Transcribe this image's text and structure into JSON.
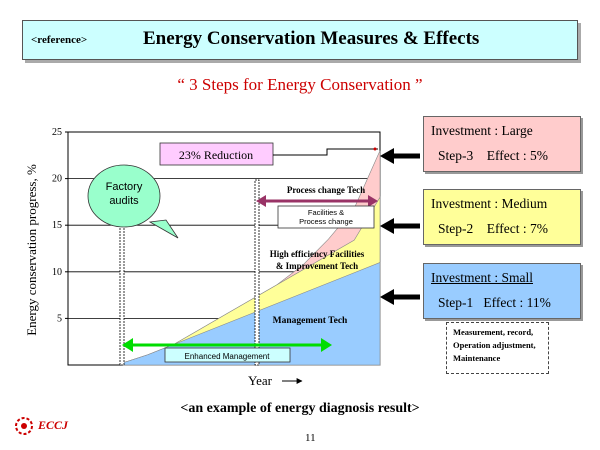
{
  "header": {
    "reference": "<reference>",
    "title": "Energy Conservation Measures & Effects"
  },
  "subtitle": "“ 3 Steps for Energy Conservation ”",
  "chart_data": {
    "type": "area",
    "ylabel": "Energy conservation progress, %",
    "xlabel": "Year",
    "ylim": [
      0,
      25
    ],
    "y_ticks": [
      5,
      10,
      15,
      20,
      25
    ],
    "grid": true,
    "x": [
      0,
      1,
      2,
      3,
      4,
      5,
      6,
      7,
      8,
      9,
      10
    ],
    "series": [
      {
        "name": "Management Tech",
        "values": [
          0.2,
          1.1,
          2.2,
          3.3,
          4.4,
          5.5,
          6.6,
          7.7,
          8.8,
          9.9,
          11.0
        ]
      },
      {
        "name": "High efficiency Facilities & Improvement Tech",
        "values": [
          0.2,
          1.1,
          2.2,
          3.8,
          5.4,
          7.0,
          8.6,
          10.2,
          11.8,
          13.4,
          18.0
        ]
      },
      {
        "name": "Process change Tech",
        "values": [
          0.2,
          1.1,
          2.2,
          3.8,
          5.4,
          7.0,
          8.6,
          10.7,
          13.5,
          16.8,
          23.0
        ]
      }
    ],
    "annotations": {
      "reduction": "23% Reduction",
      "factory_audits": "Factory audits",
      "process_change": "Process change Tech",
      "facilities": "Facilities &",
      "facilities_line2": "Process change",
      "high_eff_line1": "High efficiency Facilities",
      "high_eff_line2": "& Improvement Tech",
      "management": "Management Tech",
      "enhanced": "Enhanced Management"
    },
    "colors": {
      "management": "#99ccff",
      "facilities": "#ffff99",
      "process": "#ffcccc",
      "green_arrow": "#00dd00",
      "purple_arrow": "#993366",
      "bubble": "#99ffcc"
    }
  },
  "steps": [
    {
      "investment": "Investment : Large",
      "step": "Step-3",
      "effect": "Effect : 5%",
      "color": "#ffcccc"
    },
    {
      "investment": "Investment : Medium",
      "step": "Step-2",
      "effect": "Effect : 7%",
      "color": "#ffff99"
    },
    {
      "investment": "Investment : Small",
      "step": "Step-1",
      "effect": "Effect : 11%",
      "color": "#99ccff"
    }
  ],
  "note": {
    "line1": "Measurement, record,",
    "line2": "Operation adjustment,",
    "line3": "Maintenance"
  },
  "footer": "<an example of energy diagnosis result>",
  "logo": "ECCJ",
  "page_number": "11"
}
